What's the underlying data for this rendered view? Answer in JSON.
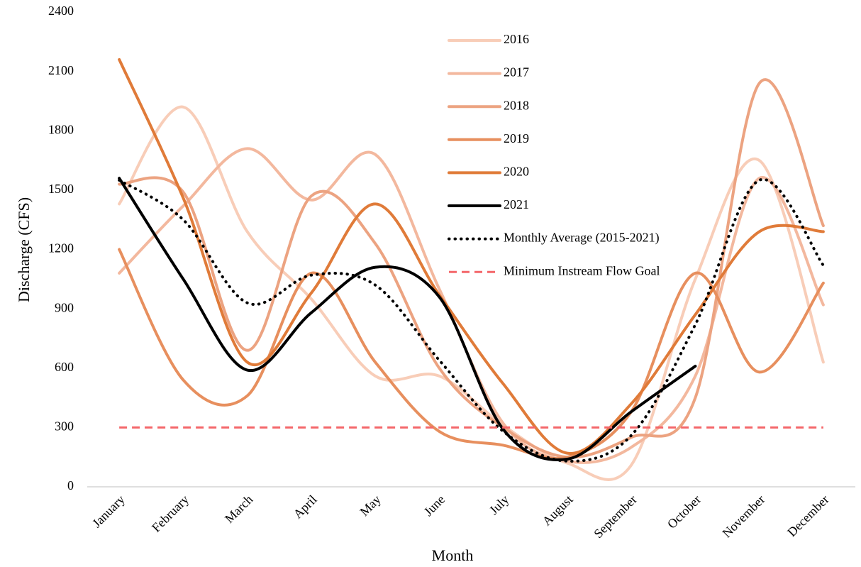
{
  "chart_data": {
    "type": "line",
    "x_label": "Month",
    "y_label": "Discharge (CFS)",
    "categories": [
      "January",
      "February",
      "March",
      "April",
      "May",
      "June",
      "July",
      "August",
      "September",
      "October",
      "November",
      "December"
    ],
    "ylim": [
      0,
      2400
    ],
    "yticks": [
      0,
      300,
      600,
      900,
      1200,
      1500,
      1800,
      2100,
      2400
    ],
    "smooth": true,
    "legend": "upper-center",
    "series": [
      {
        "name": "2016",
        "color": "#f8cdb8",
        "style": "solid",
        "values": [
          1430,
          1920,
          1290,
          950,
          560,
          560,
          310,
          120,
          110,
          1050,
          1650,
          630
        ]
      },
      {
        "name": "2017",
        "color": "#f3b89e",
        "style": "solid",
        "values": [
          1080,
          1420,
          1710,
          1450,
          1680,
          1000,
          320,
          130,
          200,
          560,
          1560,
          920
        ]
      },
      {
        "name": "2018",
        "color": "#eca381",
        "style": "solid",
        "values": [
          1530,
          1490,
          690,
          1470,
          1230,
          600,
          300,
          150,
          250,
          450,
          2040,
          1320
        ]
      },
      {
        "name": "2019",
        "color": "#e78f5e",
        "style": "solid",
        "values": [
          1200,
          540,
          460,
          1080,
          630,
          280,
          210,
          150,
          380,
          1080,
          580,
          1030
        ]
      },
      {
        "name": "2020",
        "color": "#e07b39",
        "style": "solid",
        "values": [
          2160,
          1460,
          630,
          980,
          1430,
          970,
          520,
          170,
          420,
          870,
          1290,
          1290
        ]
      },
      {
        "name": "2021",
        "color": "#000000",
        "style": "solid",
        "values": [
          1560,
          1050,
          590,
          880,
          1110,
          960,
          290,
          140,
          380,
          610,
          null,
          null
        ]
      },
      {
        "name": "Monthly Average (2015-2021)",
        "color": "#000000",
        "style": "dotted",
        "values": [
          1550,
          1350,
          930,
          1070,
          1020,
          640,
          280,
          130,
          260,
          820,
          1550,
          1120
        ]
      },
      {
        "name": "Minimum Instream Flow Goal",
        "color": "#f4676a",
        "style": "dashed",
        "values": [
          300,
          300,
          300,
          300,
          300,
          300,
          300,
          300,
          300,
          300,
          300,
          300
        ]
      }
    ]
  }
}
